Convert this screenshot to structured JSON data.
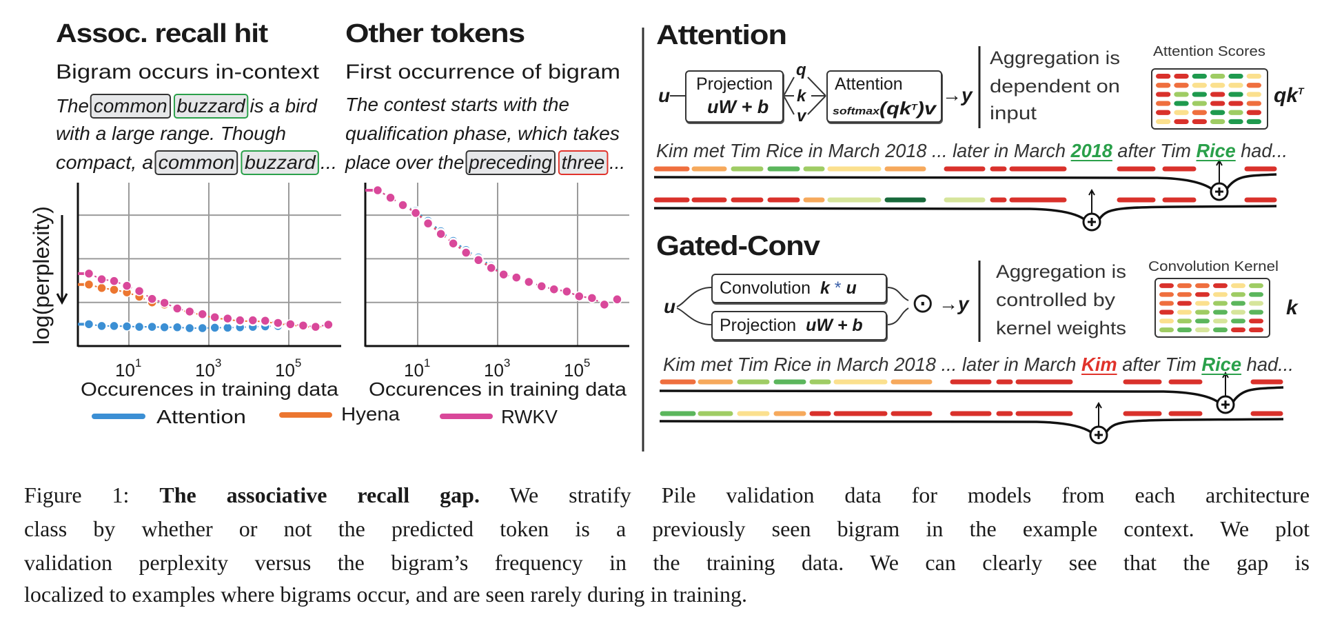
{
  "left": {
    "panels": [
      {
        "title": "Assoc. recall hit",
        "subtitle": "Bigram occurs in-context",
        "lines": [
          {
            "pre": "The",
            "tok1": "common",
            "tok2": "buzzard",
            "post": "is a bird"
          },
          {
            "pre": "with a large range. Though"
          },
          {
            "pre": "compact, a",
            "tok1": "common",
            "tok2": "buzzard",
            "post": "..."
          }
        ]
      },
      {
        "title": "Other tokens",
        "subtitle": "First occurrence of bigram",
        "lines": [
          {
            "pre": "The contest starts with the"
          },
          {
            "pre": "qualification phase, which takes"
          },
          {
            "pre": "place over the",
            "tok1": "preceding",
            "tok2": "three",
            "post": "..."
          }
        ]
      }
    ],
    "ylabel": "log(perplexity)",
    "xlabel": "Occurences in training data",
    "tick_base": "10",
    "tick_exps": [
      "1",
      "3",
      "5"
    ],
    "legend": [
      {
        "name": "Attention",
        "color": "#3b8fd4"
      },
      {
        "name": "Hyena",
        "color": "#ec7630"
      },
      {
        "name": "RWKV",
        "color": "#d9489a"
      }
    ]
  },
  "chart_data": [
    {
      "type": "scatter",
      "title": "Assoc. recall hit",
      "xlabel": "Occurences in training data",
      "ylabel": "log(perplexity)",
      "x_scale": "log10",
      "x_log10": [
        0,
        0.32,
        0.63,
        0.95,
        1.26,
        1.58,
        1.89,
        2.21,
        2.52,
        2.84,
        3.15,
        3.47,
        3.78,
        4.1,
        4.41,
        4.73,
        5.04,
        5.36,
        5.67,
        5.99
      ],
      "xlim_log10": [
        -0.3,
        6.3
      ],
      "ylim": [
        0,
        3.74
      ],
      "grid": true,
      "series": [
        {
          "name": "Attention",
          "values": [
            0.5,
            0.46,
            0.46,
            0.45,
            0.44,
            0.44,
            0.43,
            0.43,
            0.41,
            0.41,
            0.42,
            0.42,
            0.43,
            0.44,
            0.45,
            0.46,
            0.47,
            0.47,
            0.45,
            0.47
          ]
        },
        {
          "name": "Hyena",
          "values": [
            1.41,
            1.33,
            1.29,
            1.23,
            1.13,
            1.0,
            0.95,
            0.84,
            0.77,
            0.71,
            0.64,
            0.61,
            0.57,
            0.57,
            0.56,
            0.51,
            0.48,
            0.45,
            0.42,
            0.47
          ]
        },
        {
          "name": "RWKV",
          "values": [
            1.66,
            1.53,
            1.49,
            1.38,
            1.26,
            1.08,
            0.99,
            0.86,
            0.79,
            0.73,
            0.66,
            0.63,
            0.59,
            0.59,
            0.58,
            0.53,
            0.5,
            0.47,
            0.44,
            0.49
          ]
        }
      ]
    },
    {
      "type": "scatter",
      "title": "Other tokens",
      "xlabel": "Occurences in training data",
      "ylabel": "log(perplexity)",
      "x_scale": "log10",
      "x_log10": [
        0,
        0.32,
        0.63,
        0.95,
        1.26,
        1.58,
        1.89,
        2.21,
        2.52,
        2.84,
        3.15,
        3.47,
        3.78,
        4.1,
        4.41,
        4.73,
        5.04,
        5.36,
        5.67,
        5.99
      ],
      "xlim_log10": [
        -0.3,
        6.3
      ],
      "ylim": [
        0,
        3.74
      ],
      "grid": true,
      "series": [
        {
          "name": "Attention",
          "values": [
            3.57,
            3.4,
            3.23,
            3.1,
            2.87,
            2.63,
            2.41,
            2.2,
            2.03,
            1.84,
            1.64,
            1.57,
            1.47,
            1.37,
            1.3,
            1.25,
            1.14,
            1.1,
            0.95,
            1.07
          ]
        },
        {
          "name": "Hyena",
          "values": [
            3.57,
            3.4,
            3.23,
            3.07,
            2.83,
            2.59,
            2.37,
            2.16,
            1.99,
            1.81,
            1.64,
            1.57,
            1.47,
            1.37,
            1.3,
            1.25,
            1.14,
            1.1,
            0.95,
            1.07
          ]
        },
        {
          "name": "RWKV",
          "values": [
            3.57,
            3.4,
            3.23,
            3.05,
            2.81,
            2.57,
            2.35,
            2.14,
            1.97,
            1.79,
            1.64,
            1.57,
            1.47,
            1.37,
            1.3,
            1.25,
            1.14,
            1.1,
            0.95,
            1.07
          ]
        }
      ]
    }
  ],
  "right": {
    "palette": {
      "R": "#d9312b",
      "O": "#ef6f3e",
      "A": "#f6a95c",
      "Y": "#fbe08e",
      "P": "#d6e59b",
      "L": "#9fcc64",
      "G": "#5bb65c",
      "M": "#1f9a4e",
      "D": "#17693a"
    },
    "attention": {
      "title": "Attention",
      "input": "u",
      "proj_label": "Projection",
      "proj_formula": "uW + b",
      "q": "q",
      "k": "k",
      "v": "v",
      "attn_label": "Attention",
      "attn_formula_pre": "softmax",
      "attn_formula": "(qk",
      "attn_formula_sup": "T",
      "attn_formula_post": ")v",
      "output": "→y",
      "desc": [
        "Aggregation is",
        "dependent on",
        "input"
      ],
      "matrix_label": "Attention Scores",
      "matrix_symbol": "qk",
      "matrix_symbol_sup": "T",
      "matrix": [
        [
          "R",
          "R",
          "M",
          "L",
          "M",
          "Y"
        ],
        [
          "O",
          "O",
          "Y",
          "Y",
          "Y",
          "O"
        ],
        [
          "R",
          "L",
          "M",
          "R",
          "M",
          "Y"
        ],
        [
          "O",
          "M",
          "L",
          "R",
          "R",
          "O"
        ],
        [
          "R",
          "Y",
          "O",
          "M",
          "L",
          "R"
        ],
        [
          "Y",
          "R",
          "R",
          "L",
          "M",
          "M"
        ]
      ],
      "sentence": {
        "pre": "Kim met Tim Rice in March 2018 ... later in March ",
        "hl1": "2018",
        "mid": " after Tim ",
        "hl2": "Rice",
        "post": " had..."
      },
      "bars_top": [
        "O",
        "A",
        "L",
        "G",
        "L",
        "Y",
        "A",
        "R",
        "R",
        "R",
        "R",
        "R",
        "R"
      ],
      "bars_bottom": [
        "R",
        "R",
        "R",
        "R",
        "A",
        "P",
        "D",
        "P",
        "R",
        "R",
        "R",
        "R",
        "R"
      ]
    },
    "gated": {
      "title": "Gated-Conv",
      "input": "u",
      "conv_label": "Convolution",
      "conv_formula_k": "k",
      "conv_formula_op": "*",
      "conv_formula_u": "u",
      "proj_label": "Projection",
      "proj_formula": "uW + b",
      "gate_symbol": "⊙",
      "output": "→y",
      "desc": [
        "Aggregation is",
        "controlled by",
        "kernel weights"
      ],
      "matrix_label": "Convolution Kernel",
      "matrix_symbol": "k",
      "matrix": [
        [
          "R",
          "O",
          "O",
          "R",
          "Y",
          "L"
        ],
        [
          "O",
          "O",
          "R",
          "Y",
          "L",
          "G"
        ],
        [
          "O",
          "R",
          "Y",
          "L",
          "G",
          "P"
        ],
        [
          "R",
          "Y",
          "L",
          "G",
          "P",
          "G"
        ],
        [
          "Y",
          "L",
          "G",
          "P",
          "G",
          "R"
        ],
        [
          "L",
          "G",
          "P",
          "G",
          "R",
          "R"
        ]
      ],
      "sentence": {
        "pre": "Kim met Tim Rice in March 2018 ... later in March ",
        "hl1": "Kim",
        "mid": " after Tim ",
        "hl2": "Rice",
        "post": " had..."
      },
      "bars_top": [
        "O",
        "A",
        "L",
        "G",
        "L",
        "Y",
        "A",
        "R",
        "R",
        "R",
        "R",
        "R",
        "R"
      ],
      "bars_bottom": [
        "G",
        "L",
        "Y",
        "A",
        "R",
        "R",
        "R",
        "R",
        "R",
        "R",
        "R",
        "R",
        "R"
      ]
    }
  },
  "caption": {
    "label": "Figure 1:",
    "title": "The associative recall gap.",
    "lines": [
      "We stratify Pile validation data for models from each architecture",
      "class by whether or not the predicted token is a previously seen bigram in the example context. We plot",
      "validation perplexity versus the bigram’s frequency in the training data. We can clearly see that the gap is",
      "localized to examples where bigrams occur, and are seen rarely during in training."
    ]
  }
}
